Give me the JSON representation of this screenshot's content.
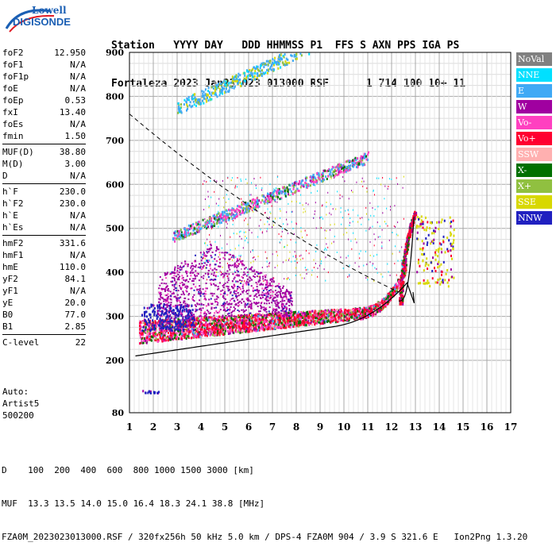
{
  "logo": {
    "line1": "Lowell",
    "line2": "DIGISONDE"
  },
  "header": {
    "row1": "Station   YYYY DAY   DDD HHMMSS P1  FFS S AXN PPS IGA PS",
    "row2": "Fortaleza 2023 Jan23 023 013000 RSF      1 714 100 10+ 11"
  },
  "params": {
    "group1": [
      {
        "name": "foF2",
        "value": "12.950"
      },
      {
        "name": "foF1",
        "value": "N/A"
      },
      {
        "name": "foF1p",
        "value": "N/A"
      },
      {
        "name": "foE",
        "value": "N/A"
      },
      {
        "name": "foEp",
        "value": "0.53"
      },
      {
        "name": "fxI",
        "value": "13.40"
      },
      {
        "name": "foEs",
        "value": "N/A"
      },
      {
        "name": "fmin",
        "value": "1.50"
      }
    ],
    "group2": [
      {
        "name": "MUF(D)",
        "value": "38.80"
      },
      {
        "name": "M(D)",
        "value": "3.00"
      },
      {
        "name": "D",
        "value": "N/A"
      }
    ],
    "group3": [
      {
        "name": "h`F",
        "value": "230.0"
      },
      {
        "name": "h`F2",
        "value": "230.0"
      },
      {
        "name": "h`E",
        "value": "N/A"
      },
      {
        "name": "h`Es",
        "value": "N/A"
      }
    ],
    "group4": [
      {
        "name": "hmF2",
        "value": "331.6"
      },
      {
        "name": "hmF1",
        "value": "N/A"
      },
      {
        "name": "hmE",
        "value": "110.0"
      },
      {
        "name": "yF2",
        "value": "84.1"
      },
      {
        "name": "yF1",
        "value": "N/A"
      },
      {
        "name": "yE",
        "value": "20.0"
      },
      {
        "name": "B0",
        "value": "77.0"
      },
      {
        "name": "B1",
        "value": "2.85"
      }
    ],
    "group5": [
      {
        "name": "C-level",
        "value": "22"
      }
    ]
  },
  "auto": {
    "line1": "Auto:",
    "line2": "Artist5",
    "line3": "500200"
  },
  "legend": [
    {
      "label": "NoVal",
      "color": "#808080"
    },
    {
      "label": "NNE",
      "color": "#00e0ff"
    },
    {
      "label": "E",
      "color": "#3fa9f5"
    },
    {
      "label": "W",
      "color": "#a000a0"
    },
    {
      "label": "Vo-",
      "color": "#ff40c0"
    },
    {
      "label": "Vo+",
      "color": "#ff0030"
    },
    {
      "label": "SSW",
      "color": "#ffb0b0"
    },
    {
      "label": "X-",
      "color": "#007000"
    },
    {
      "label": "X+",
      "color": "#90c040"
    },
    {
      "label": "SSE",
      "color": "#d8d800"
    },
    {
      "label": "NNW",
      "color": "#2020c0"
    }
  ],
  "axes": {
    "y_ticks": [
      "80",
      "200",
      "300",
      "400",
      "500",
      "600",
      "700",
      "800",
      "900"
    ],
    "x_ticks": [
      "1",
      "2",
      "3",
      "4",
      "5",
      "6",
      "7",
      "8",
      "9",
      "10",
      "11",
      "12",
      "13",
      "14",
      "15",
      "16",
      "17"
    ]
  },
  "footer": {
    "line1": "D    100  200  400  600  800 1000 1500 3000 [km]",
    "line2": "MUF  13.3 13.5 14.0 15.0 16.4 18.3 24.1 38.8 [MHz]",
    "line3": "FZA0M_2023023013000.RSF / 320fx256h 50 kHz 5.0 km / DPS-4 FZA0M 904 / 3.9 S 321.6 E   Ion2Png 1.3.20"
  }
}
